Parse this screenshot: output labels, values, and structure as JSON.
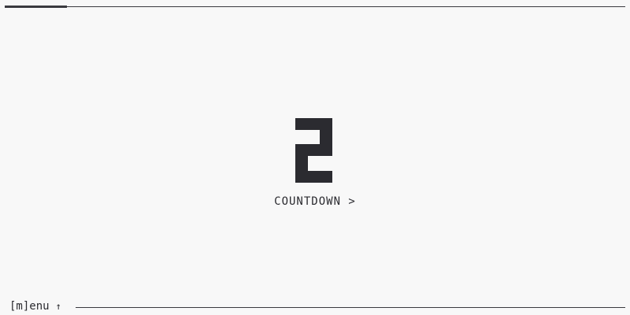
{
  "timer": {
    "digit": "2",
    "mode_label": "COUNTDOWN >",
    "progress_fraction": 0.1
  },
  "footer": {
    "menu_label": "[m]enu",
    "arrow": "↑"
  },
  "colors": {
    "background": "#f8f8f8",
    "foreground": "#2b2b30"
  }
}
